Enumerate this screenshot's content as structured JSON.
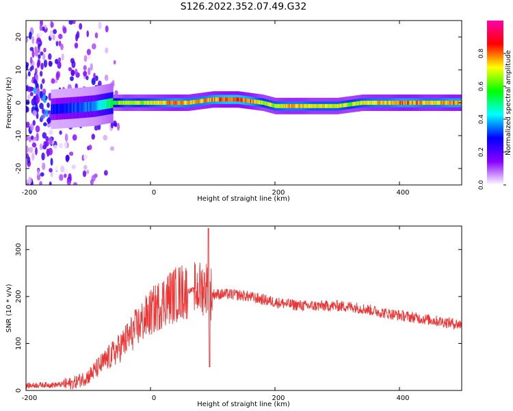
{
  "title": "S126.2022.352.07.49.G32",
  "chart_data": [
    {
      "type": "heatmap",
      "xlabel": "Height of straight line (km)",
      "ylabel": "Frequency (Hz)",
      "xlim": [
        -200,
        500
      ],
      "ylim": [
        -25,
        25
      ],
      "x_ticks": [
        -200,
        0,
        200,
        400
      ],
      "y_ticks": [
        -20,
        -10,
        0,
        10,
        20
      ],
      "colorbar": {
        "label": "Normalized spectral amplitude",
        "range": [
          0,
          1
        ],
        "ticks": [
          "0.0",
          "0.2",
          "0.4",
          "0.6",
          "0.8"
        ],
        "colors": [
          "#ffffff",
          "#8800ff",
          "#0000ff",
          "#00ffff",
          "#00ff00",
          "#ffff00",
          "#ff0000",
          "#ff00aa"
        ]
      },
      "ridge": {
        "x": [
          -160,
          -120,
          -90,
          -60,
          -40,
          -20,
          0,
          20,
          40,
          60,
          80,
          100,
          120,
          140,
          160,
          180,
          200,
          220,
          240,
          260,
          280,
          300,
          320,
          340,
          360,
          380,
          400,
          420,
          440,
          460,
          480,
          500
        ],
        "frequency": [
          -2,
          -1.5,
          -1,
          0,
          0,
          0,
          0,
          0,
          0,
          0,
          0.5,
          1,
          1,
          1,
          0.5,
          0,
          -1,
          -1,
          -1,
          -1,
          -1,
          -1,
          -0.5,
          0,
          0,
          0,
          0,
          0,
          0,
          0,
          0,
          0
        ],
        "amplitude": [
          0.3,
          0.35,
          0.4,
          0.6,
          0.75,
          0.7,
          0.75,
          0.8,
          0.85,
          0.8,
          0.8,
          0.85,
          0.9,
          0.9,
          0.85,
          0.7,
          0.75,
          0.8,
          0.8,
          0.75,
          0.75,
          0.75,
          0.7,
          0.75,
          0.8,
          0.8,
          0.85,
          0.85,
          0.8,
          0.8,
          0.85,
          0.85
        ]
      },
      "noise_region_x": [
        -200,
        -90
      ]
    },
    {
      "type": "line",
      "xlabel": "Height of straight line (km)",
      "ylabel": "SNR (10 * v/v)",
      "xlim": [
        -200,
        500
      ],
      "ylim": [
        0,
        350
      ],
      "x_ticks": [
        -200,
        0,
        200,
        400
      ],
      "y_ticks": [
        0,
        100,
        200,
        300
      ],
      "line_color": "#ee3333",
      "series": [
        {
          "x": [
            -200,
            -175,
            -150,
            -125,
            -100,
            -75,
            -50,
            -25,
            0,
            25,
            50,
            75,
            90,
            95,
            100,
            125,
            150,
            175,
            200,
            225,
            250,
            275,
            300,
            325,
            350,
            375,
            400,
            425,
            450,
            475,
            500
          ],
          "values": [
            10,
            12,
            12,
            15,
            30,
            60,
            90,
            130,
            165,
            195,
            210,
            215,
            220,
            210,
            205,
            205,
            202,
            195,
            188,
            183,
            180,
            180,
            180,
            178,
            172,
            165,
            160,
            155,
            150,
            145,
            140
          ]
        }
      ]
    }
  ]
}
